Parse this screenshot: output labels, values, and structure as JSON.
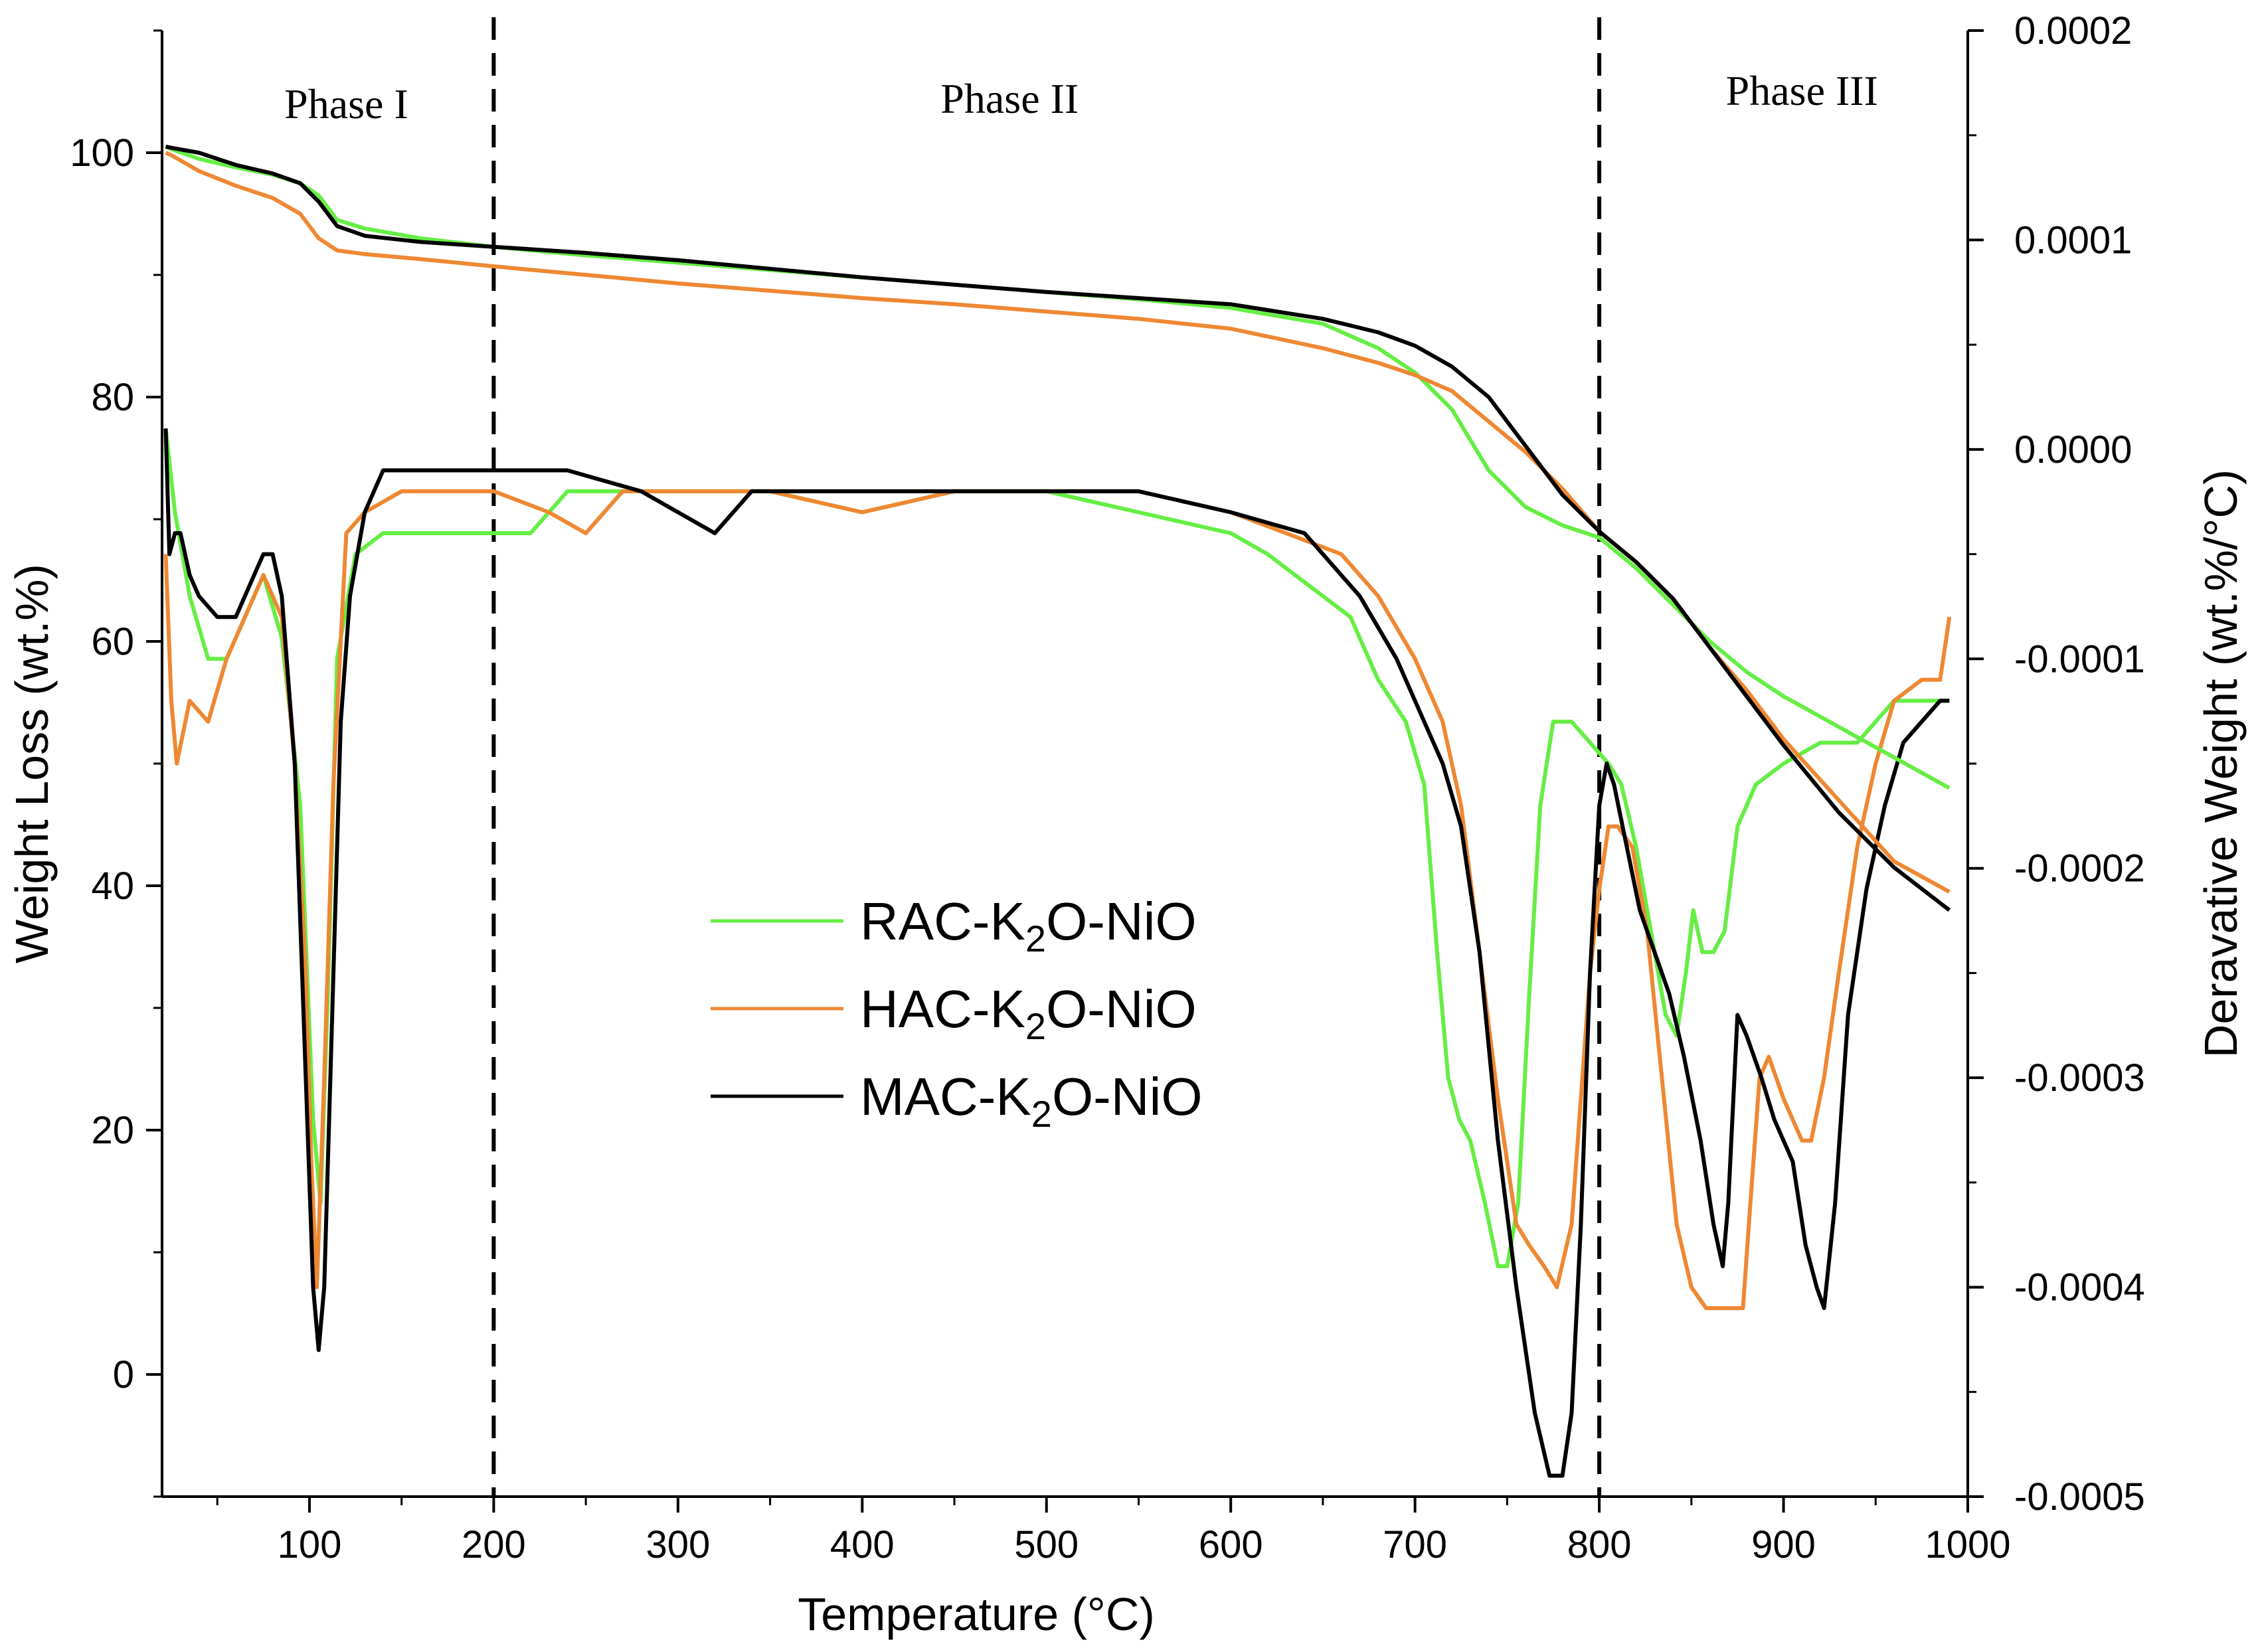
{
  "chart_data": {
    "type": "line",
    "title": "",
    "xlabel": "Temperature (°C)",
    "ylabel_left": "Weight Loss (wt.%)",
    "ylabel_right": "Deravative Weight (wt.%/°C)",
    "xlim": [
      20,
      1000
    ],
    "ylim_left": [
      -10,
      110
    ],
    "ylim_right": [
      -0.0005,
      0.0002
    ],
    "x_ticks": [
      100,
      200,
      300,
      400,
      500,
      600,
      700,
      800,
      900,
      1000
    ],
    "x_tick_labels": [
      "100",
      "200",
      "300",
      "400",
      "500",
      "600",
      "700",
      "800",
      "900",
      "1000"
    ],
    "y_left_ticks": [
      0,
      20,
      40,
      60,
      80,
      100
    ],
    "y_left_tick_labels": [
      "0",
      "20",
      "40",
      "60",
      "80",
      "100"
    ],
    "y_right_ticks": [
      0.0002,
      0.0001,
      0.0,
      -0.0001,
      -0.0002,
      -0.0003,
      -0.0004,
      -0.0005
    ],
    "y_right_tick_labels": [
      "0.0002",
      "0.0001",
      "0.0000",
      "-0.0001",
      "-0.0002",
      "-0.0003",
      "-0.0004",
      "-0.0005"
    ],
    "phase_dividers": [
      200,
      800
    ],
    "phase_labels": [
      {
        "text": "Phase I",
        "x": 120
      },
      {
        "text": "Phase II",
        "x": 480
      },
      {
        "text": "Phase III",
        "x": 910
      }
    ],
    "grid": false,
    "legend_position": "center-left",
    "series": [
      {
        "name": "RAC-K2O-NiO",
        "legend_main": "RAC-K",
        "legend_sub": "2",
        "legend_rest": "O-NiO",
        "color": "#66ee44",
        "tga": {
          "x": [
            22,
            25,
            40,
            60,
            80,
            95,
            105,
            115,
            130,
            160,
            200,
            250,
            300,
            350,
            400,
            450,
            500,
            550,
            600,
            650,
            680,
            700,
            720,
            740,
            760,
            780,
            800,
            820,
            840,
            860,
            880,
            900,
            930,
            960,
            990
          ],
          "y": [
            100.5,
            100.3,
            99.5,
            98.8,
            98.2,
            97.5,
            96.5,
            94.5,
            93.8,
            93.0,
            92.3,
            91.6,
            91.0,
            90.4,
            89.8,
            89.2,
            88.6,
            88.0,
            87.3,
            86.0,
            84.0,
            82.0,
            79.0,
            74.0,
            71.0,
            69.5,
            68.5,
            66.0,
            63.0,
            60.0,
            57.5,
            55.5,
            53.0,
            50.5,
            48.0
          ]
        },
        "dtg": {
          "x": [
            22,
            27,
            35,
            45,
            55,
            65,
            75,
            85,
            95,
            102,
            106,
            110,
            115,
            125,
            140,
            170,
            200,
            220,
            240,
            260,
            300,
            350,
            400,
            450,
            500,
            550,
            600,
            620,
            650,
            665,
            680,
            695,
            705,
            712,
            718,
            724,
            730,
            738,
            745,
            750,
            756,
            762,
            768,
            775,
            785,
            795,
            805,
            812,
            820,
            828,
            836,
            842,
            847,
            851,
            856,
            862,
            868,
            875,
            885,
            900,
            920,
            940,
            960,
            975,
            990
          ],
          "y": [
            1e-05,
            -3e-05,
            -7e-05,
            -0.0001,
            -0.0001,
            -8e-05,
            -6e-05,
            -9e-05,
            -0.00017,
            -0.00032,
            -0.00036,
            -0.00026,
            -0.0001,
            -5e-05,
            -4e-05,
            -4e-05,
            -4e-05,
            -4e-05,
            -2e-05,
            -2e-05,
            -2e-05,
            -2e-05,
            -3e-05,
            -2e-05,
            -2e-05,
            -3e-05,
            -4e-05,
            -5e-05,
            -7e-05,
            -8e-05,
            -0.00011,
            -0.00013,
            -0.00016,
            -0.00024,
            -0.0003,
            -0.00032,
            -0.00033,
            -0.00036,
            -0.00039,
            -0.00039,
            -0.00036,
            -0.00026,
            -0.00017,
            -0.00013,
            -0.00013,
            -0.00014,
            -0.00015,
            -0.00016,
            -0.00019,
            -0.00023,
            -0.00027,
            -0.00028,
            -0.00025,
            -0.00022,
            -0.00024,
            -0.00024,
            -0.00023,
            -0.00018,
            -0.00016,
            -0.00015,
            -0.00014,
            -0.00014,
            -0.00012,
            -0.00012,
            -0.00012
          ]
        }
      },
      {
        "name": "HAC-K2O-NiO",
        "legend_main": "HAC-K",
        "legend_sub": "2",
        "legend_rest": "O-NiO",
        "color": "#ee8833",
        "tga": {
          "x": [
            22,
            25,
            40,
            60,
            80,
            95,
            105,
            115,
            130,
            160,
            200,
            250,
            300,
            350,
            400,
            450,
            500,
            550,
            600,
            650,
            680,
            700,
            720,
            740,
            760,
            780,
            800,
            820,
            840,
            860,
            880,
            900,
            930,
            960,
            990
          ],
          "y": [
            100.0,
            99.8,
            98.5,
            97.3,
            96.3,
            95.0,
            93.0,
            92.0,
            91.7,
            91.3,
            90.7,
            90.0,
            89.3,
            88.7,
            88.1,
            87.6,
            87.0,
            86.4,
            85.6,
            84.0,
            82.8,
            81.8,
            80.5,
            78.0,
            75.5,
            72.5,
            69.0,
            66.5,
            63.5,
            59.5,
            56.0,
            52.0,
            47.0,
            42.0,
            39.5
          ]
        },
        "dtg": {
          "x": [
            22,
            25,
            28,
            35,
            45,
            55,
            65,
            75,
            85,
            92,
            98,
            101,
            104,
            108,
            113,
            120,
            130,
            150,
            200,
            230,
            250,
            270,
            300,
            350,
            400,
            450,
            500,
            550,
            600,
            630,
            660,
            680,
            700,
            715,
            725,
            735,
            745,
            755,
            762,
            770,
            777,
            785,
            790,
            795,
            800,
            805,
            810,
            818,
            826,
            834,
            842,
            850,
            858,
            865,
            872,
            878,
            882,
            887,
            892,
            900,
            910,
            915,
            922,
            930,
            940,
            950,
            960,
            975,
            985,
            990
          ],
          "y": [
            -5e-05,
            -0.00012,
            -0.00015,
            -0.00012,
            -0.00013,
            -0.0001,
            -8e-05,
            -6e-05,
            -8e-05,
            -0.00015,
            -0.00025,
            -0.00034,
            -0.0004,
            -0.0003,
            -0.00016,
            -4e-05,
            -3e-05,
            -2e-05,
            -2e-05,
            -3e-05,
            -4e-05,
            -2e-05,
            -2e-05,
            -2e-05,
            -3e-05,
            -2e-05,
            -2e-05,
            -2e-05,
            -3e-05,
            -4e-05,
            -5e-05,
            -7e-05,
            -0.0001,
            -0.00013,
            -0.00017,
            -0.00024,
            -0.00031,
            -0.00037,
            -0.00038,
            -0.00039,
            -0.0004,
            -0.00037,
            -0.00031,
            -0.00025,
            -0.00021,
            -0.00018,
            -0.00018,
            -0.00019,
            -0.00023,
            -0.0003,
            -0.00037,
            -0.0004,
            -0.00041,
            -0.00041,
            -0.00041,
            -0.00041,
            -0.00036,
            -0.0003,
            -0.00029,
            -0.00031,
            -0.00033,
            -0.00033,
            -0.0003,
            -0.00025,
            -0.00019,
            -0.00015,
            -0.00012,
            -0.00011,
            -0.00011,
            -8e-05
          ]
        }
      },
      {
        "name": "MAC-K2O-NiO",
        "legend_main": "MAC-K",
        "legend_sub": "2",
        "legend_rest": "O-NiO",
        "color": "#000000",
        "tga": {
          "x": [
            22,
            25,
            40,
            60,
            80,
            95,
            105,
            115,
            130,
            160,
            200,
            250,
            300,
            350,
            400,
            450,
            500,
            550,
            600,
            650,
            680,
            700,
            720,
            740,
            760,
            780,
            800,
            820,
            840,
            860,
            880,
            900,
            930,
            960,
            990
          ],
          "y": [
            100.5,
            100.4,
            100.0,
            99.0,
            98.3,
            97.5,
            96.0,
            94.0,
            93.2,
            92.7,
            92.3,
            91.8,
            91.2,
            90.5,
            89.8,
            89.2,
            88.6,
            88.1,
            87.6,
            86.4,
            85.3,
            84.2,
            82.5,
            80.0,
            76.0,
            72.0,
            69.0,
            66.5,
            63.5,
            59.5,
            55.5,
            51.5,
            46.0,
            41.5,
            38.0
          ]
        },
        "dtg": {
          "x": [
            22,
            24,
            27,
            30,
            35,
            40,
            50,
            60,
            70,
            75,
            80,
            85,
            92,
            98,
            102,
            105,
            108,
            112,
            117,
            122,
            130,
            140,
            160,
            200,
            240,
            280,
            320,
            340,
            360,
            400,
            450,
            500,
            550,
            600,
            640,
            670,
            690,
            705,
            715,
            725,
            735,
            745,
            755,
            765,
            773,
            780,
            785,
            790,
            795,
            800,
            804,
            808,
            815,
            822,
            830,
            838,
            846,
            855,
            862,
            867,
            870,
            875,
            880,
            888,
            895,
            905,
            912,
            918,
            922,
            928,
            935,
            945,
            955,
            965,
            975,
            985,
            990
          ],
          "y": [
            1e-05,
            -5e-05,
            -4e-05,
            -4e-05,
            -6e-05,
            -7e-05,
            -8e-05,
            -8e-05,
            -6e-05,
            -5e-05,
            -5e-05,
            -7e-05,
            -0.00015,
            -0.0003,
            -0.0004,
            -0.00043,
            -0.0004,
            -0.00028,
            -0.00013,
            -7e-05,
            -3e-05,
            -1e-05,
            -1e-05,
            -1e-05,
            -1e-05,
            -2e-05,
            -4e-05,
            -2e-05,
            -2e-05,
            -2e-05,
            -2e-05,
            -2e-05,
            -2e-05,
            -3e-05,
            -4e-05,
            -7e-05,
            -0.0001,
            -0.00013,
            -0.00015,
            -0.00018,
            -0.00024,
            -0.00033,
            -0.0004,
            -0.00046,
            -0.00049,
            -0.00049,
            -0.00046,
            -0.00037,
            -0.00025,
            -0.00017,
            -0.00015,
            -0.00016,
            -0.00019,
            -0.00022,
            -0.00024,
            -0.00026,
            -0.00029,
            -0.00033,
            -0.00037,
            -0.00039,
            -0.00036,
            -0.00027,
            -0.00028,
            -0.0003,
            -0.00032,
            -0.00034,
            -0.00038,
            -0.0004,
            -0.00041,
            -0.00036,
            -0.00027,
            -0.00021,
            -0.00017,
            -0.00014,
            -0.00013,
            -0.00012,
            -0.00012
          ]
        }
      }
    ]
  }
}
